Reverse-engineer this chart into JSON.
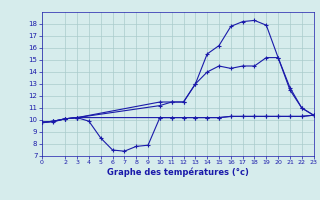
{
  "xlabel": "Graphe des températures (°c)",
  "xlim": [
    0,
    23
  ],
  "ylim": [
    7,
    19
  ],
  "yticks": [
    7,
    8,
    9,
    10,
    11,
    12,
    13,
    14,
    15,
    16,
    17,
    18
  ],
  "xticks": [
    0,
    2,
    3,
    4,
    5,
    6,
    7,
    8,
    9,
    10,
    11,
    12,
    13,
    14,
    15,
    16,
    17,
    18,
    19,
    20,
    21,
    22,
    23
  ],
  "bg_color": "#d6ecec",
  "grid_color": "#aacccc",
  "line_color": "#1a1aaa",
  "series": [
    {
      "x": [
        0,
        1,
        2,
        3,
        10,
        11,
        12,
        13,
        14,
        15,
        16,
        17,
        18,
        19,
        20,
        21,
        22,
        23
      ],
      "y": [
        9.8,
        9.9,
        10.1,
        10.2,
        10.2,
        10.2,
        10.2,
        10.2,
        10.2,
        10.2,
        10.3,
        10.3,
        10.3,
        10.3,
        10.3,
        10.3,
        10.3,
        10.4
      ]
    },
    {
      "x": [
        0,
        1,
        2,
        3,
        4,
        5,
        6,
        7,
        8,
        9,
        10,
        11,
        12,
        13,
        14,
        15,
        16,
        17,
        18,
        19,
        20,
        21,
        22,
        23
      ],
      "y": [
        9.8,
        9.85,
        10.1,
        10.2,
        9.9,
        8.5,
        7.5,
        7.4,
        7.8,
        7.9,
        10.2,
        10.2,
        10.2,
        10.2,
        10.2,
        10.2,
        10.3,
        10.3,
        10.3,
        10.3,
        10.3,
        10.3,
        10.3,
        10.4
      ]
    },
    {
      "x": [
        0,
        1,
        2,
        3,
        10,
        11,
        12,
        13,
        14,
        15,
        16,
        17,
        18,
        19,
        20,
        21,
        22,
        23
      ],
      "y": [
        9.8,
        9.9,
        10.1,
        10.2,
        11.5,
        11.5,
        11.5,
        13.0,
        15.5,
        16.2,
        17.8,
        18.2,
        18.3,
        17.9,
        15.2,
        12.7,
        11.0,
        10.4
      ]
    },
    {
      "x": [
        0,
        1,
        2,
        3,
        10,
        11,
        12,
        13,
        14,
        15,
        16,
        17,
        18,
        19,
        20,
        21,
        22,
        23
      ],
      "y": [
        9.8,
        9.9,
        10.1,
        10.2,
        11.2,
        11.5,
        11.5,
        13.0,
        14.0,
        14.5,
        14.3,
        14.5,
        14.5,
        15.2,
        15.2,
        12.5,
        11.0,
        10.4
      ]
    }
  ]
}
